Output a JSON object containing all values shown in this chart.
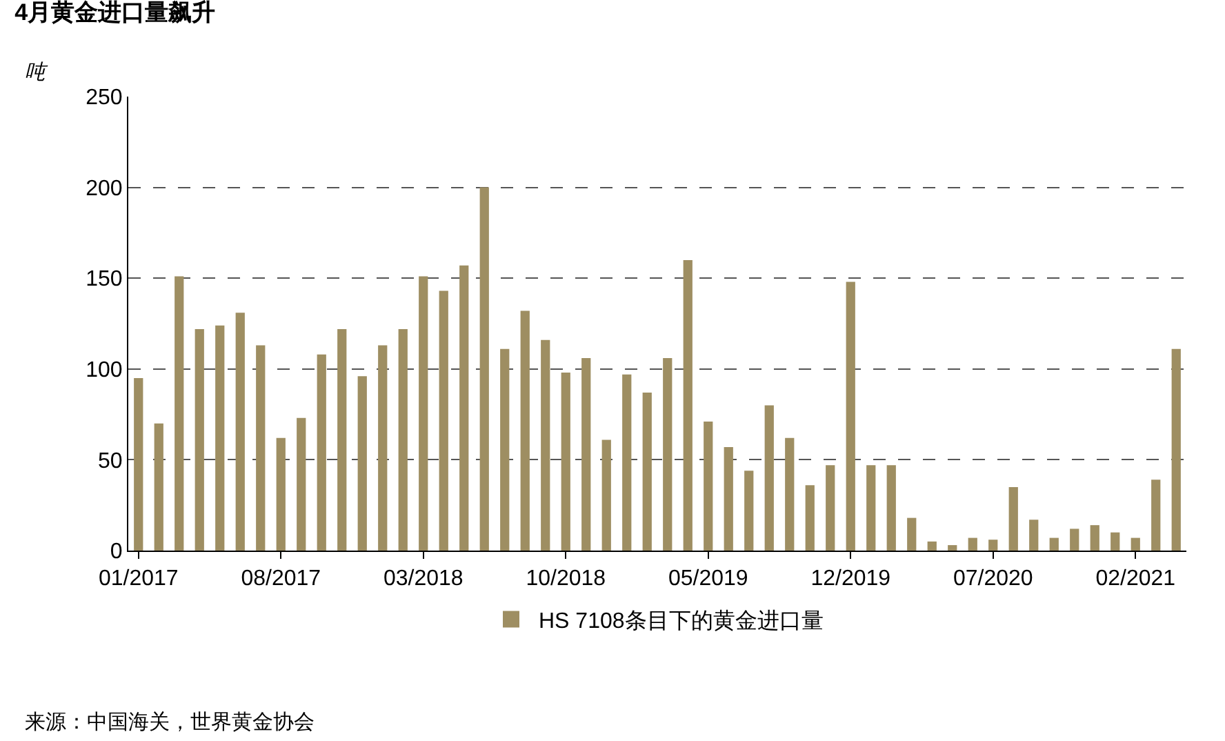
{
  "chart_data": {
    "type": "bar",
    "title": "4月黄金进口量飙升",
    "ylabel": "吨",
    "categories": [
      "01/2017",
      null,
      null,
      null,
      null,
      null,
      null,
      "08/2017",
      null,
      null,
      null,
      null,
      null,
      null,
      "03/2018",
      null,
      null,
      null,
      null,
      null,
      null,
      "10/2018",
      null,
      null,
      null,
      null,
      null,
      null,
      "05/2019",
      null,
      null,
      null,
      null,
      null,
      null,
      "12/2019",
      null,
      null,
      null,
      null,
      null,
      null,
      "07/2020",
      null,
      null,
      null,
      null,
      null,
      null,
      "02/2021",
      null,
      null
    ],
    "series": [
      {
        "name": "HS 7108条目下的黄金进口量",
        "color": "#9e8e62",
        "values": [
          95,
          70,
          151,
          122,
          124,
          131,
          113,
          62,
          73,
          108,
          122,
          96,
          113,
          122,
          151,
          143,
          157,
          200,
          111,
          132,
          116,
          98,
          106,
          61,
          97,
          87,
          106,
          160,
          71,
          57,
          44,
          80,
          62,
          36,
          47,
          148,
          47,
          47,
          18,
          5,
          3,
          7,
          6,
          35,
          17,
          7,
          12,
          14,
          10,
          7,
          39,
          111
        ]
      }
    ],
    "ylim": [
      0,
      250
    ],
    "yticks": [
      0,
      50,
      100,
      150,
      200,
      250
    ],
    "grid": "y",
    "legend": "bottom",
    "annotations": [
      "来源：中国海关，世界黄金协会"
    ]
  }
}
